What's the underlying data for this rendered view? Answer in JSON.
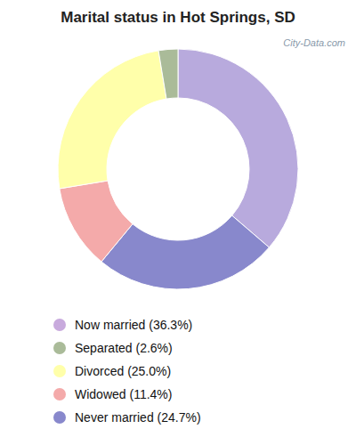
{
  "chart_data": {
    "type": "pie",
    "title": "Marital status in Hot Springs, SD",
    "categories": [
      "Now married",
      "Never married",
      "Widowed",
      "Divorced",
      "Separated"
    ],
    "values": [
      36.3,
      24.7,
      11.4,
      25.0,
      2.6
    ],
    "colors": [
      "#b8aadd",
      "#8888cc",
      "#f4aaaa",
      "#ffffaa",
      "#aabb99"
    ],
    "legend_entries": [
      {
        "label": "Now married (36.3%)",
        "color": "#c8aadd"
      },
      {
        "label": "Separated (2.6%)",
        "color": "#aabb99"
      },
      {
        "label": "Divorced (25.0%)",
        "color": "#ffffaa"
      },
      {
        "label": "Widowed (11.4%)",
        "color": "#f4aaaa"
      },
      {
        "label": "Never married (24.7%)",
        "color": "#8888cc"
      }
    ],
    "annotations": [
      "City-Data.com"
    ]
  }
}
